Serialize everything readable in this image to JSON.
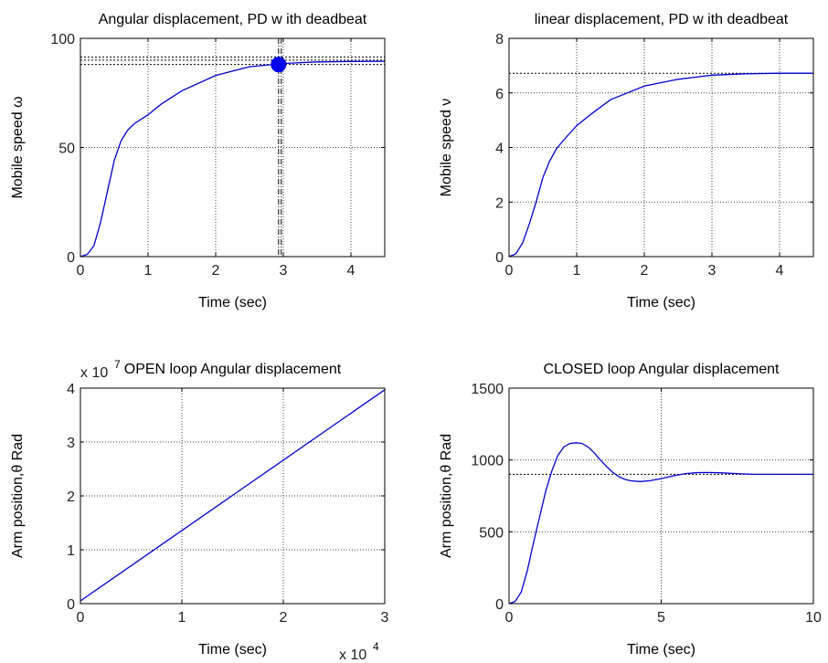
{
  "chart_data": [
    {
      "type": "line",
      "title": "Angular displacement, PD w ith deadbeat",
      "xlabel": "Time   (sec)",
      "ylabel": "Mobile speed ω",
      "xlim": [
        0,
        4.5
      ],
      "ylim": [
        0,
        100
      ],
      "xticks": [
        "0",
        "1",
        "2",
        "3",
        "4"
      ],
      "yticks": [
        "0",
        "50",
        "100"
      ],
      "grid": true,
      "color": "#0000cc",
      "series": [
        {
          "x": [
            0,
            0.1,
            0.2,
            0.3,
            0.4,
            0.5,
            0.6,
            0.7,
            0.8,
            1.0,
            1.2,
            1.5,
            2.0,
            2.5,
            3.0,
            3.5,
            4.0,
            4.5
          ],
          "y": [
            0,
            1,
            5,
            16,
            30,
            44,
            53,
            58,
            61,
            65,
            70,
            76,
            83,
            87,
            88.5,
            89.2,
            89.4,
            89.5
          ]
        }
      ],
      "marker": {
        "x": 2.93,
        "y": 88
      },
      "ref_hlines": [
        88,
        90,
        91.5
      ],
      "ref_vlines": [
        2.93,
        2.97
      ]
    },
    {
      "type": "line",
      "title": "linear displacement, PD w ith deadbeat",
      "xlabel": "Time   (sec)",
      "ylabel": "Mobile speed ν",
      "xlim": [
        0,
        4.5
      ],
      "ylim": [
        0,
        8
      ],
      "xticks": [
        "0",
        "1",
        "2",
        "3",
        "4"
      ],
      "yticks": [
        "0",
        "2",
        "4",
        "6",
        "8"
      ],
      "grid": true,
      "color": "#0000cc",
      "series": [
        {
          "x": [
            0,
            0.1,
            0.2,
            0.3,
            0.4,
            0.5,
            0.6,
            0.7,
            0.8,
            1.0,
            1.2,
            1.5,
            2.0,
            2.5,
            3.0,
            3.5,
            4.0,
            4.5
          ],
          "y": [
            0,
            0.1,
            0.5,
            1.2,
            2.0,
            2.9,
            3.5,
            3.95,
            4.25,
            4.8,
            5.2,
            5.75,
            6.25,
            6.5,
            6.65,
            6.7,
            6.72,
            6.72
          ]
        }
      ],
      "ref_hlines": [
        6.72
      ]
    },
    {
      "type": "line",
      "title": "OPEN loop Angular displacement",
      "xlabel": "Time  (sec)",
      "ylabel": "Arm  position,θ Rad",
      "xlim": [
        0,
        3
      ],
      "ylim": [
        0,
        4
      ],
      "xticks": [
        "0",
        "1",
        "2",
        "3"
      ],
      "yticks": [
        "0",
        "1",
        "2",
        "3",
        "4"
      ],
      "x_multiplier": {
        "base": "x 10",
        "exp": "4"
      },
      "y_multiplier": {
        "base": "x 10",
        "exp": "7"
      },
      "grid": true,
      "color": "#0000cc",
      "series": [
        {
          "x": [
            0,
            3
          ],
          "y": [
            0.05,
            3.97
          ]
        }
      ]
    },
    {
      "type": "line",
      "title": "CLOSED loop Angular displacement",
      "xlabel": "Time  (sec)",
      "ylabel": "Arm  position,θ Rad",
      "xlim": [
        0,
        10
      ],
      "ylim": [
        0,
        1500
      ],
      "xticks": [
        "0",
        "5",
        "10"
      ],
      "yticks": [
        "0",
        "500",
        "1000",
        "1500"
      ],
      "grid": true,
      "color": "#0000cc",
      "series": [
        {
          "x": [
            0,
            0.2,
            0.4,
            0.6,
            0.8,
            1.0,
            1.2,
            1.4,
            1.6,
            1.8,
            2.0,
            2.2,
            2.4,
            2.6,
            2.8,
            3.0,
            3.2,
            3.4,
            3.6,
            3.8,
            4.0,
            4.3,
            4.6,
            5.0,
            5.4,
            5.8,
            6.2,
            6.6,
            7.0,
            7.5,
            8.0,
            8.5,
            9.0,
            9.5,
            10.0
          ],
          "y": [
            0,
            15,
            80,
            230,
            420,
            600,
            780,
            920,
            1030,
            1090,
            1115,
            1120,
            1115,
            1090,
            1050,
            1000,
            955,
            915,
            885,
            865,
            855,
            850,
            855,
            870,
            890,
            905,
            912,
            913,
            910,
            905,
            900,
            900,
            900,
            900,
            900
          ]
        }
      ],
      "ref_hlines": [
        900
      ]
    }
  ]
}
